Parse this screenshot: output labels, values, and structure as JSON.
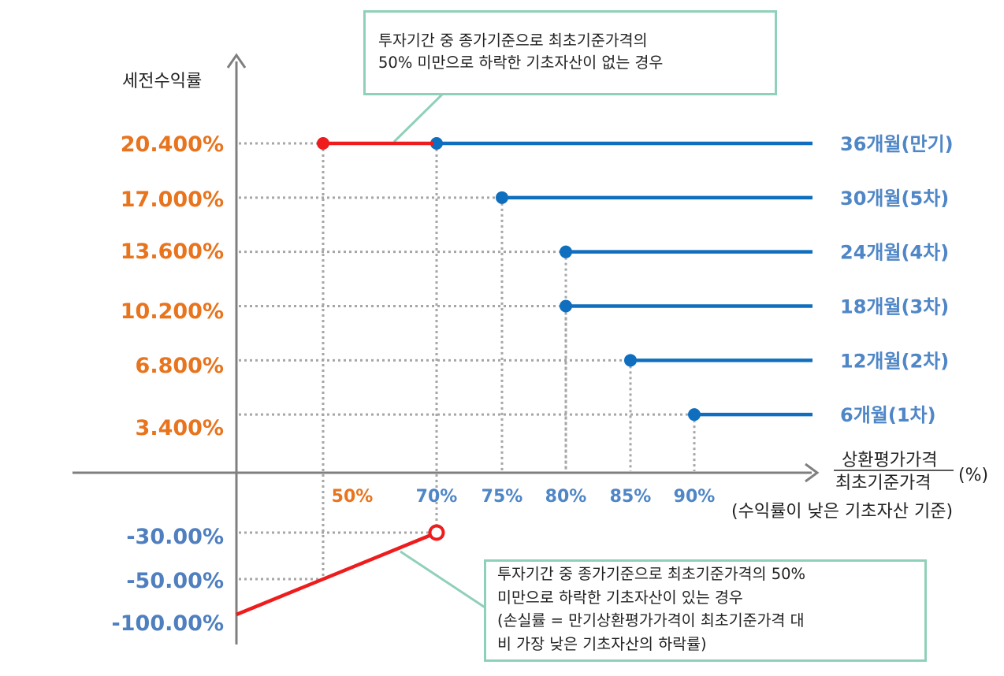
{
  "chart_data": {
    "type": "line",
    "ylabel": "세전수익률",
    "xlabel": {
      "numerator": "상환평가가격",
      "denominator": "최초기준가격",
      "unit": "(%)",
      "note": "(수익률이 낮은 기초자산 기준)"
    },
    "x_ticks": [
      "50%",
      "70%",
      "75%",
      "80%",
      "85%",
      "90%"
    ],
    "y_ticks": [
      "20.400%",
      "17.000%",
      "13.600%",
      "10.200%",
      "6.800%",
      "3.400%",
      "-30.00%",
      "-50.00%",
      "-100.00%"
    ],
    "series": [
      {
        "name": "36개월(만기)",
        "barrier": 70,
        "value": 20.4
      },
      {
        "name": "30개월(5차)",
        "barrier": 75,
        "value": 17.0
      },
      {
        "name": "24개월(4차)",
        "barrier": 80,
        "value": 13.6
      },
      {
        "name": "18개월(3차)",
        "barrier": 80,
        "value": 10.2
      },
      {
        "name": "12개월(2차)",
        "barrier": 85,
        "value": 6.8
      },
      {
        "name": "6개월(1차)",
        "barrier": 90,
        "value": 3.4
      }
    ],
    "no_breach_segment": {
      "x": [
        50,
        70
      ],
      "y": 20.4
    },
    "breach_line": {
      "x": [
        0,
        70
      ],
      "y": [
        -100,
        -30
      ]
    },
    "annotations": [
      {
        "lines": [
          "투자기간 중 종가기준으로 최초기준가격의",
          "50% 미만으로 하락한 기초자산이 없는 경우"
        ]
      },
      {
        "lines": [
          "투자기간 중 종가기준으로 최초기준가격의 50%",
          "미만으로 하락한 기초자산이 있는 경우",
          "(손실률 = 만기상환평가가격이 최초기준가격 대",
          "비 가장 낮은 기초자산의 하락률)"
        ]
      }
    ],
    "colors": {
      "positive_label": "#E8741E",
      "negative_label": "#4F7FBF",
      "series_line": "#0F6FBE",
      "series_label": "#4F86C6",
      "red_line": "#EE1C1C",
      "axis": "#7f7f7f",
      "guide": "#a6a6a6",
      "callout_border": "#8fd0b8"
    }
  }
}
